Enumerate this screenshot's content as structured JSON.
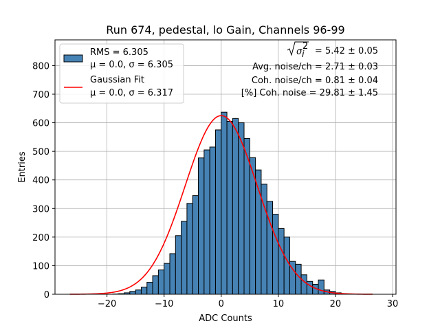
{
  "chart_data": {
    "type": "bar",
    "title": "Run 674, pedestal, lo Gain, Channels 96-99",
    "xlabel": "ADC Counts",
    "ylabel": "Entries",
    "xlim": [
      -29.1,
      30.6
    ],
    "ylim": [
      0,
      890
    ],
    "xticks": [
      -20,
      -10,
      0,
      10,
      20,
      30
    ],
    "xtick_labels": [
      "−20",
      "−10",
      "0",
      "10",
      "20",
      "30"
    ],
    "yticks": [
      0,
      100,
      200,
      300,
      400,
      500,
      600,
      700,
      800
    ],
    "ytick_labels": [
      "0",
      "100",
      "200",
      "300",
      "400",
      "500",
      "600",
      "700",
      "800"
    ],
    "grid": true,
    "legend_position": "top-left",
    "colors": {
      "bar_fill": "#4682b4",
      "bar_edge": "#000000",
      "fit_line": "#ff0000",
      "grid": "#b0b0b0"
    },
    "histogram": {
      "name": "RMS = 6.305",
      "name_line2": "μ = 0.0, σ = 6.305",
      "bin_edges": [
        -26,
        -25,
        -24,
        -23,
        -22,
        -21,
        -20,
        -19,
        -18,
        -17,
        -16,
        -15,
        -14,
        -13,
        -12,
        -11,
        -10,
        -9,
        -8,
        -7,
        -6,
        -5,
        -4,
        -3,
        -2,
        -1,
        0,
        1,
        2,
        3,
        4,
        5,
        6,
        7,
        8,
        9,
        10,
        11,
        12,
        13,
        14,
        15,
        16,
        17,
        18,
        19,
        20,
        21,
        22,
        23,
        24,
        25,
        26,
        27
      ],
      "counts": [
        0,
        0,
        0,
        0,
        0,
        0,
        0,
        1,
        2,
        5,
        10,
        15,
        25,
        42,
        65,
        85,
        108,
        142,
        205,
        255,
        318,
        345,
        477,
        505,
        515,
        575,
        637,
        605,
        615,
        600,
        545,
        478,
        435,
        385,
        325,
        280,
        230,
        200,
        115,
        105,
        68,
        45,
        35,
        50,
        15,
        10,
        5,
        2,
        1,
        0,
        0,
        0,
        0
      ]
    },
    "fit": {
      "name": "Gaussian Fit",
      "name_line2": "μ = 0.0, σ = 6.317",
      "mu": 0.0,
      "sigma": 6.317,
      "amplitude": 625,
      "x_range": [
        -26.5,
        26.5
      ]
    },
    "annotations": [
      {
        "prefix": "",
        "suffix": " = 5.42 ± 0.05"
      },
      {
        "text": "Avg. noise/ch = 2.71 ± 0.03"
      },
      {
        "text": "Coh. noise/ch = 0.81 ± 0.04"
      },
      {
        "text": "[%] Coh. noise = 29.81 ± 1.45"
      }
    ]
  }
}
